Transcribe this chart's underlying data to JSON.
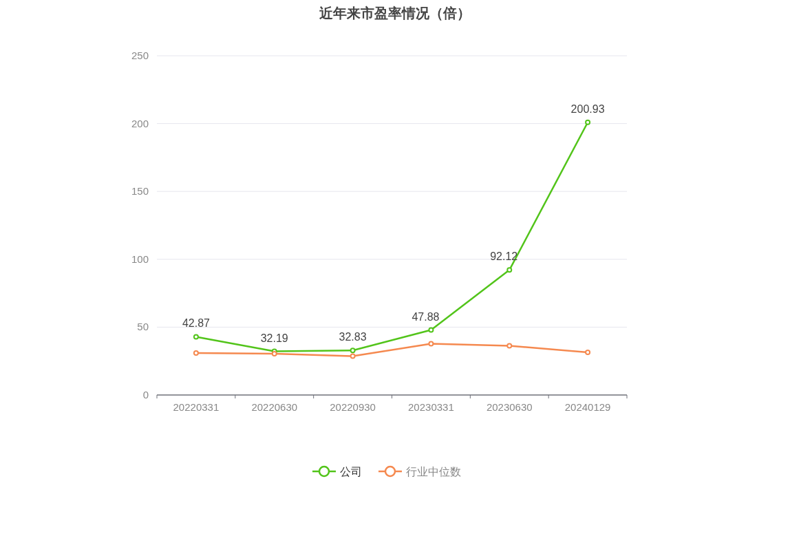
{
  "chart_data": {
    "type": "line",
    "title": "近年来市盈率情况（倍）",
    "categories": [
      "20220331",
      "20220630",
      "20220930",
      "20230331",
      "20230630",
      "20240129"
    ],
    "series": [
      {
        "name": "公司",
        "color": "#52c41a",
        "values": [
          42.87,
          32.19,
          32.83,
          47.88,
          92.12,
          200.93
        ],
        "value_labels": [
          "42.87",
          "32.19",
          "32.83",
          "47.88",
          "92.12",
          "200.93"
        ]
      },
      {
        "name": "行业中位数",
        "color": "#f5894f",
        "values": [
          30.9,
          30.4,
          28.6,
          37.8,
          36.3,
          31.4
        ]
      }
    ],
    "ylim": [
      0,
      250
    ],
    "yticks": [
      0,
      50,
      100,
      150,
      200,
      250
    ],
    "grid": "y",
    "legend": "bottom",
    "marker": "circle",
    "line_style": "solid"
  }
}
